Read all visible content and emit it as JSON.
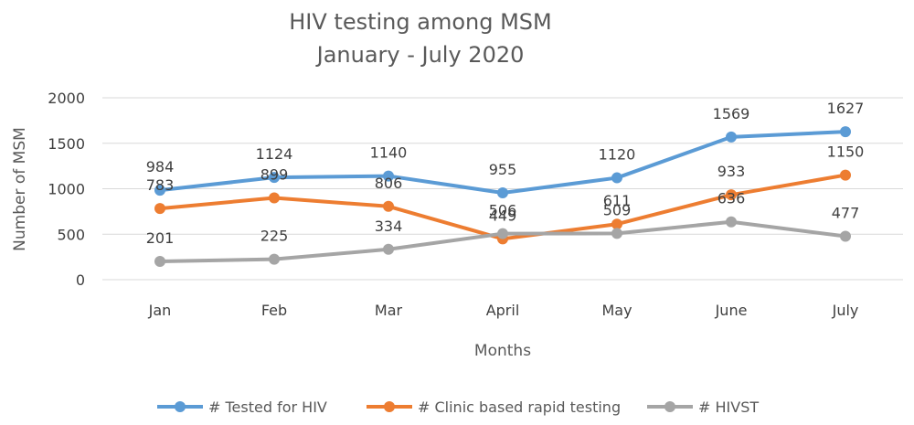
{
  "chart_data": {
    "type": "line",
    "title": "HIV testing among MSM",
    "subtitle": "January - July 2020",
    "xlabel": "Months",
    "ylabel": "Number of MSM",
    "categories": [
      "Jan",
      "Feb",
      "Mar",
      "April",
      "May",
      "June",
      "July"
    ],
    "ylim": [
      0,
      2000
    ],
    "yticks": [
      0,
      500,
      1000,
      1500,
      2000
    ],
    "grid": true,
    "legend_position": "bottom",
    "series": [
      {
        "name": "# Tested for HIV",
        "color": "#5B9BD5",
        "values": [
          984,
          1124,
          1140,
          955,
          1120,
          1569,
          1627
        ]
      },
      {
        "name": "# Clinic based rapid testing",
        "color": "#ED7D31",
        "values": [
          783,
          899,
          806,
          449,
          611,
          933,
          1150
        ]
      },
      {
        "name": "# HIVST",
        "color": "#A5A5A5",
        "values": [
          201,
          225,
          334,
          506,
          509,
          636,
          477
        ]
      }
    ]
  }
}
